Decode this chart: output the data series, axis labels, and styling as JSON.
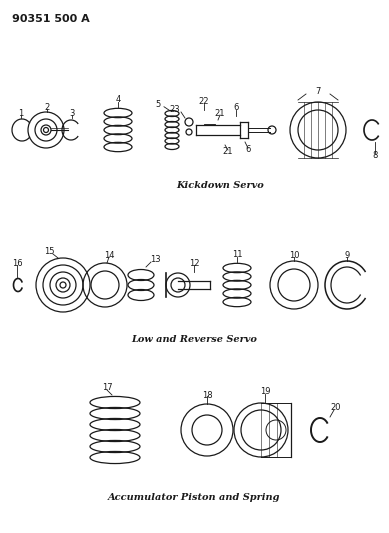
{
  "title": "90351 500 A",
  "background_color": "#ffffff",
  "line_color": "#1a1a1a",
  "section1_label": "Kickdown Servo",
  "section2_label": "Low and Reverse Servo",
  "section3_label": "Accumulator Piston and Spring",
  "figsize": [
    3.89,
    5.33
  ],
  "dpi": 100
}
